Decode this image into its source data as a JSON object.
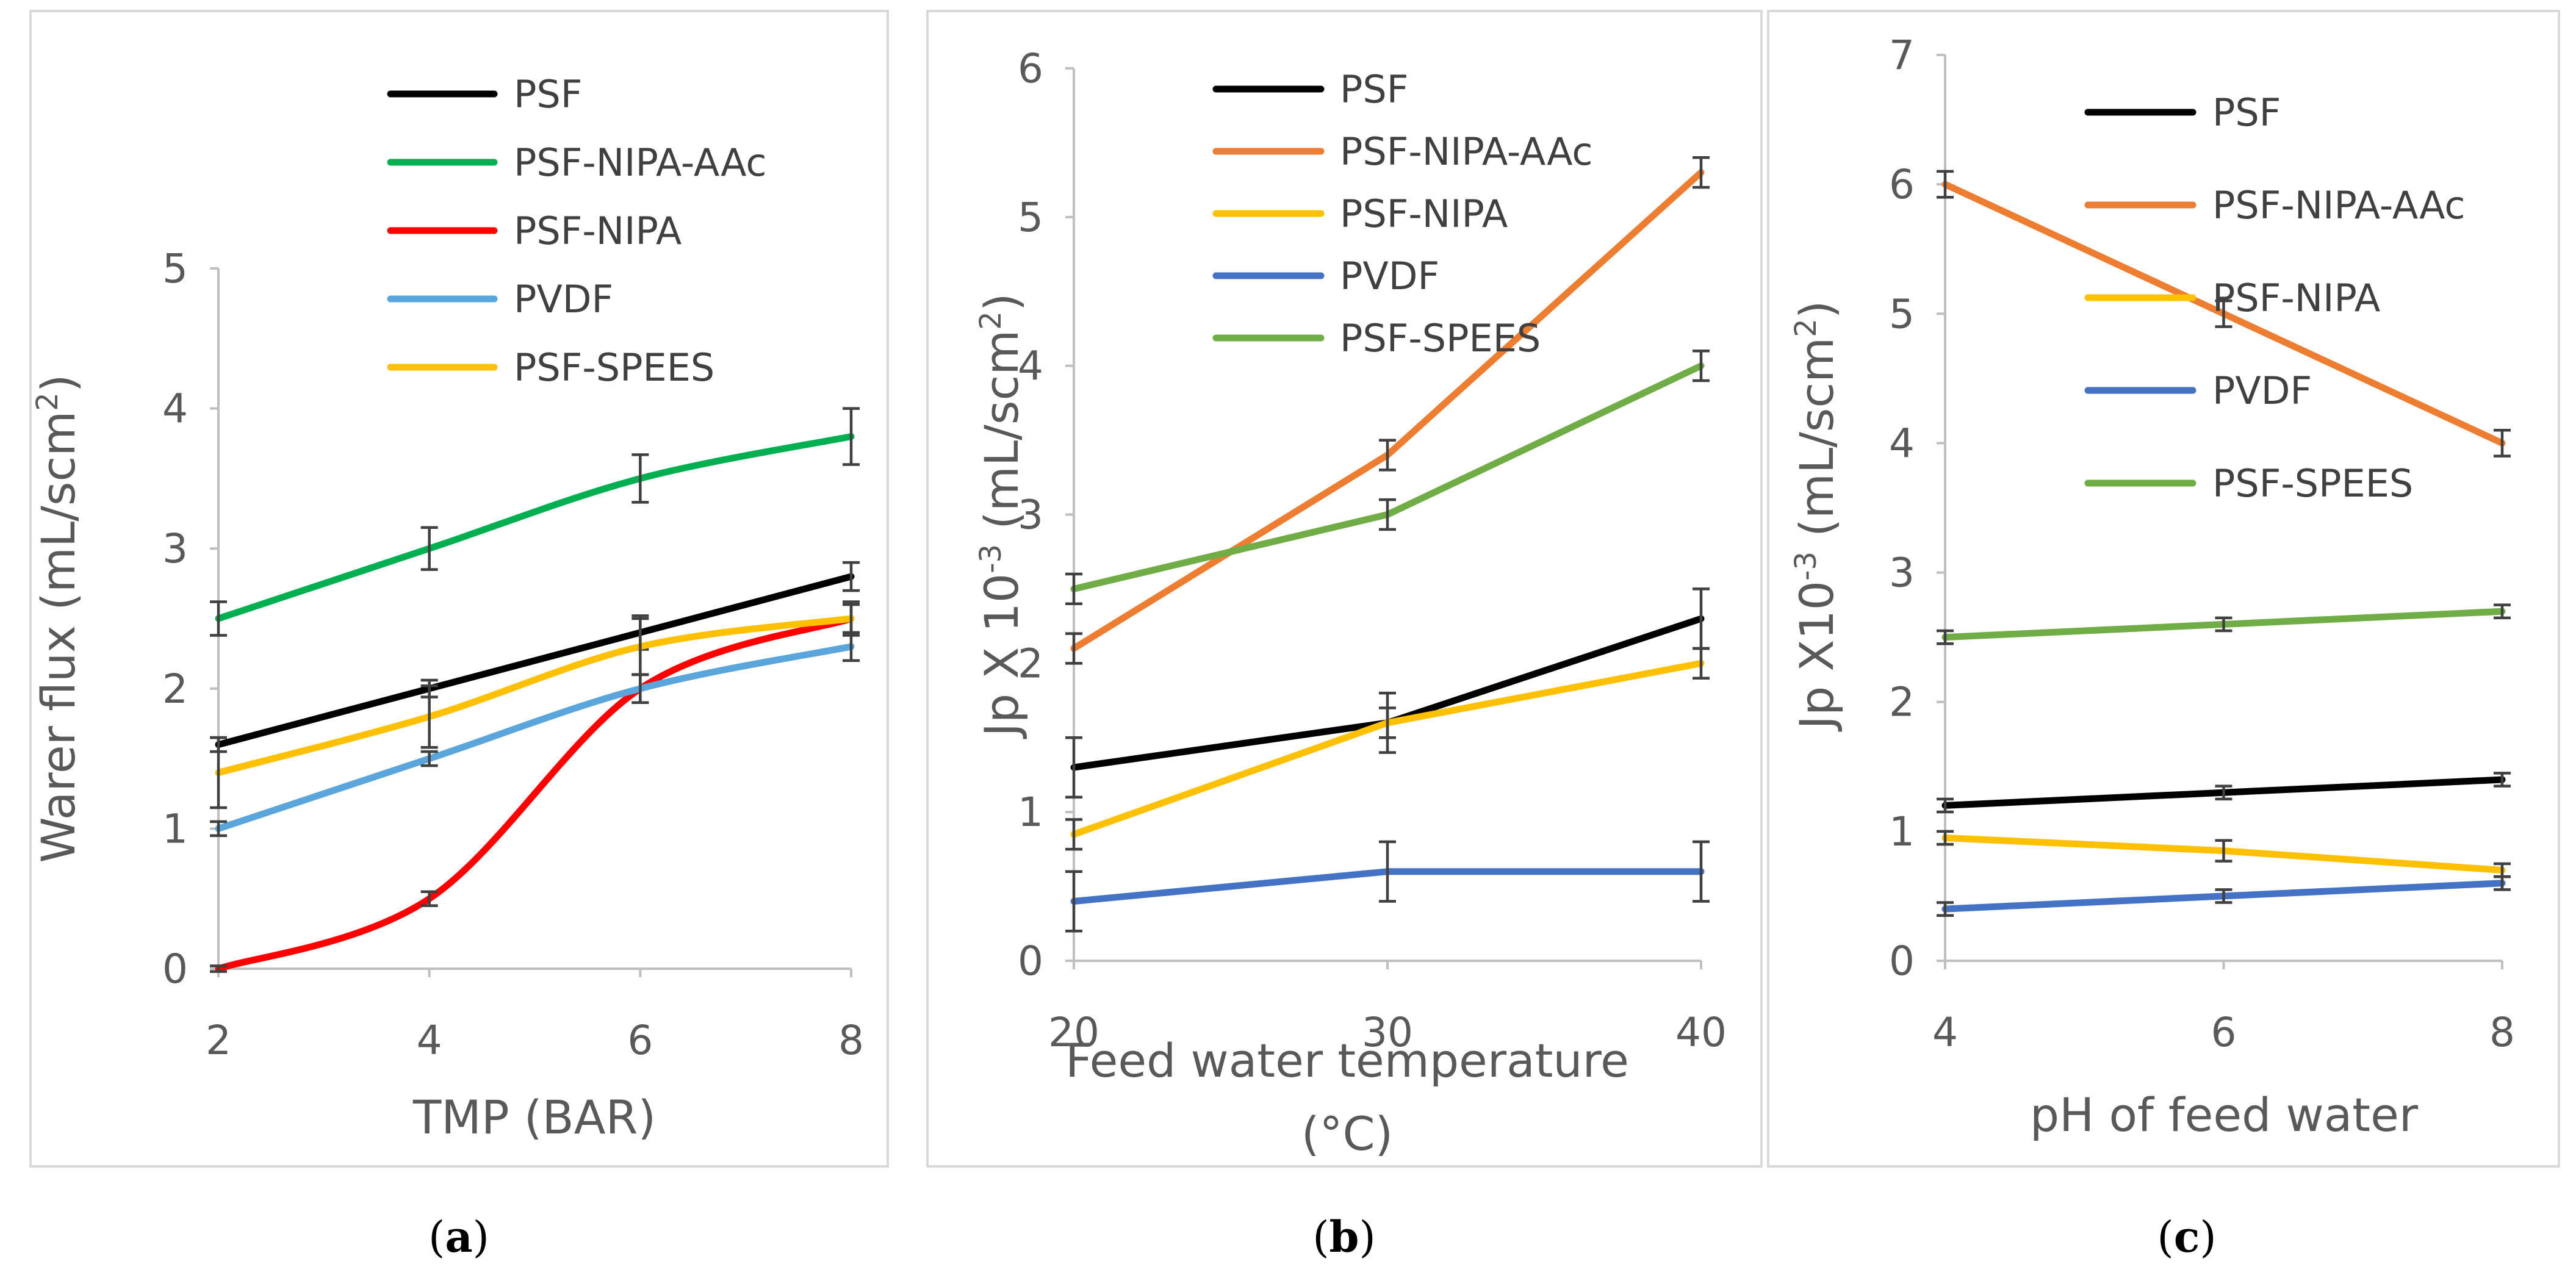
{
  "chart_data": [
    {
      "type": "line",
      "xlabel": "TMP (BAR)",
      "ylabel": "Warer flux (mL/scm",
      "ylabel_sup": "2",
      "ylabel_end": ")",
      "caption": "a",
      "xlim": [
        2,
        8
      ],
      "ylim": [
        0,
        5
      ],
      "xticks": [
        2,
        4,
        6,
        8
      ],
      "yticks": [
        0,
        1,
        2,
        3,
        4,
        5
      ],
      "smooth": true,
      "series": [
        {
          "name": "PSF",
          "color": "#000000",
          "x": [
            2,
            4,
            6,
            8
          ],
          "y": [
            1.6,
            2.0,
            2.4,
            2.8
          ],
          "err": [
            0.05,
            0.06,
            0.12,
            0.1
          ]
        },
        {
          "name": "PSF-NIPA-AAc",
          "color": "#00b050",
          "x": [
            2,
            4,
            6,
            8
          ],
          "y": [
            2.5,
            3.0,
            3.5,
            3.8
          ],
          "err": [
            0.12,
            0.15,
            0.17,
            0.2
          ]
        },
        {
          "name": "PSF-NIPA",
          "color": "#ff0000",
          "x": [
            2,
            4,
            6,
            8
          ],
          "y": [
            0.0,
            0.5,
            2.0,
            2.5
          ],
          "err": [
            0.02,
            0.05,
            0.1,
            0.1
          ]
        },
        {
          "name": "PVDF",
          "color": "#5aa5dc",
          "x": [
            2,
            4,
            6,
            8
          ],
          "y": [
            1.0,
            1.5,
            2.0,
            2.3
          ],
          "err": [
            0.05,
            0.05,
            0.1,
            0.1
          ]
        },
        {
          "name": "PSF-SPEES",
          "color": "#ffc000",
          "x": [
            2,
            4,
            6,
            8
          ],
          "y": [
            1.4,
            1.8,
            2.3,
            2.5
          ],
          "err": [
            0.25,
            0.22,
            0.2,
            0.12
          ]
        }
      ]
    },
    {
      "type": "line",
      "xlabel": "Feed water temperature",
      "xlabel_line2": "(°C)",
      "ylabel": "Jp X 10",
      "ylabel_sup": "-3",
      "ylabel_end": " (mL/scm",
      "ylabel_sup2": "2",
      "ylabel_end2": ")",
      "caption": "b",
      "xlim": [
        20,
        40
      ],
      "ylim": [
        0,
        6
      ],
      "xticks": [
        20,
        30,
        40
      ],
      "yticks": [
        0,
        1,
        2,
        3,
        4,
        5,
        6
      ],
      "smooth": false,
      "series": [
        {
          "name": "PSF",
          "color": "#000000",
          "x": [
            20,
            30,
            40
          ],
          "y": [
            1.3,
            1.6,
            2.3
          ],
          "err": [
            0.2,
            0.2,
            0.2
          ]
        },
        {
          "name": "PSF-NIPA-AAc",
          "color": "#ed7d31",
          "x": [
            20,
            30,
            40
          ],
          "y": [
            2.1,
            3.4,
            5.3
          ],
          "err": [
            0.1,
            0.1,
            0.1
          ]
        },
        {
          "name": "PSF-NIPA",
          "color": "#ffc000",
          "x": [
            20,
            30,
            40
          ],
          "y": [
            0.85,
            1.6,
            2.0
          ],
          "err": [
            0.1,
            0.1,
            0.1
          ]
        },
        {
          "name": "PVDF",
          "color": "#4472c4",
          "x": [
            20,
            30,
            40
          ],
          "y": [
            0.4,
            0.6,
            0.6
          ],
          "err": [
            0.2,
            0.2,
            0.2
          ]
        },
        {
          "name": "PSF-SPEES",
          "color": "#70ad47",
          "x": [
            20,
            30,
            40
          ],
          "y": [
            2.5,
            3.0,
            4.0
          ],
          "err": [
            0.1,
            0.1,
            0.1
          ]
        }
      ]
    },
    {
      "type": "line",
      "xlabel": "pH of feed water",
      "ylabel": "Jp X10",
      "ylabel_sup": "-3",
      "ylabel_end": " (mL/scm",
      "ylabel_sup2": "2",
      "ylabel_end2": ")",
      "caption": "c",
      "xlim": [
        4,
        8
      ],
      "ylim": [
        0,
        7
      ],
      "xticks": [
        4,
        6,
        8
      ],
      "yticks": [
        0,
        1,
        2,
        3,
        4,
        5,
        6,
        7
      ],
      "smooth": false,
      "series": [
        {
          "name": "PSF",
          "color": "#000000",
          "x": [
            4,
            6,
            8
          ],
          "y": [
            1.2,
            1.3,
            1.4
          ],
          "err": [
            0.05,
            0.05,
            0.05
          ]
        },
        {
          "name": "PSF-NIPA-AAc",
          "color": "#ed7d31",
          "x": [
            4,
            6,
            8
          ],
          "y": [
            6.0,
            5.0,
            4.0
          ],
          "err": [
            0.1,
            0.1,
            0.1
          ]
        },
        {
          "name": "PSF-NIPA",
          "color": "#ffc000",
          "x": [
            4,
            6,
            8
          ],
          "y": [
            0.95,
            0.85,
            0.7
          ],
          "err": [
            0.05,
            0.08,
            0.05
          ]
        },
        {
          "name": "PVDF",
          "color": "#4472c4",
          "x": [
            4,
            6,
            8
          ],
          "y": [
            0.4,
            0.5,
            0.6
          ],
          "err": [
            0.05,
            0.05,
            0.05
          ]
        },
        {
          "name": "PSF-SPEES",
          "color": "#70ad47",
          "x": [
            4,
            6,
            8
          ],
          "y": [
            2.5,
            2.6,
            2.7
          ],
          "err": [
            0.05,
            0.05,
            0.05
          ]
        }
      ]
    }
  ]
}
